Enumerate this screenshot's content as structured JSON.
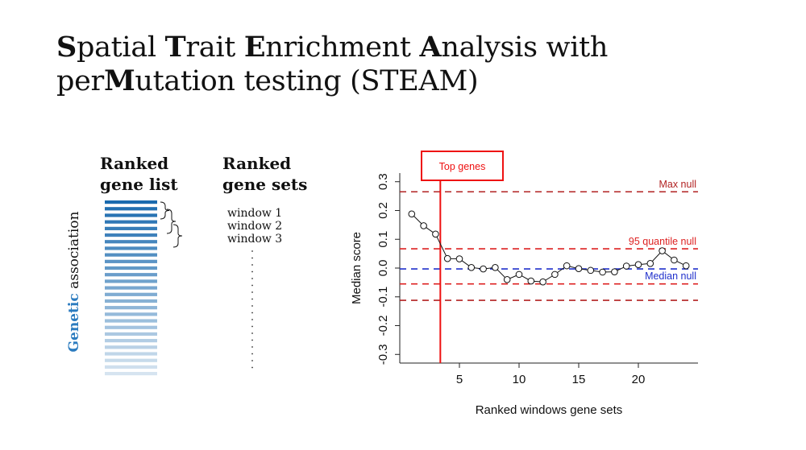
{
  "title": {
    "line1": [
      {
        "t": "S",
        "b": true
      },
      {
        "t": "patial ",
        "b": false
      },
      {
        "t": "T",
        "b": true
      },
      {
        "t": "rait ",
        "b": false
      },
      {
        "t": "E",
        "b": true
      },
      {
        "t": "nrichment ",
        "b": false
      },
      {
        "t": "A",
        "b": true
      },
      {
        "t": "nalysis with",
        "b": false
      }
    ],
    "line2": [
      {
        "t": "per",
        "b": false
      },
      {
        "t": "M",
        "b": true
      },
      {
        "t": "utation testing (STEAM)",
        "b": false
      }
    ]
  },
  "left_panel": {
    "gene_list_heading_1": "Ranked",
    "gene_list_heading_2": "gene list",
    "gene_sets_heading_1": "Ranked",
    "gene_sets_heading_2": "gene sets",
    "axis_label_strong": "Genetic",
    "axis_label_rest": " association",
    "windows": [
      "window 1",
      "window 2",
      "window 3"
    ],
    "gene_bar_count": 27,
    "gene_bar_color": "#1a6aae"
  },
  "chart_data": {
    "type": "line",
    "xlabel": "Ranked windows gene sets",
    "ylabel": "Median score",
    "xlim": [
      0,
      25
    ],
    "ylim": [
      -0.33,
      0.33
    ],
    "xticks": [
      5,
      10,
      15,
      20
    ],
    "yticks": [
      -0.3,
      -0.2,
      -0.1,
      0.0,
      0.1,
      0.2,
      0.3
    ],
    "ytick_labels": [
      "-0.3",
      "-0.2",
      "-0.1",
      "0.0",
      "0.1",
      "0.2",
      "0.3"
    ],
    "series": [
      {
        "x": [
          1,
          2,
          3,
          4,
          5,
          6,
          7,
          8,
          9,
          10,
          11,
          12,
          13,
          14,
          15,
          16,
          17,
          18,
          19,
          20,
          21,
          22,
          23,
          24
        ],
        "values": [
          0.188,
          0.147,
          0.118,
          0.033,
          0.032,
          0.002,
          -0.003,
          0.002,
          -0.04,
          -0.022,
          -0.045,
          -0.048,
          -0.022,
          0.008,
          -0.002,
          -0.008,
          -0.014,
          -0.013,
          0.007,
          0.012,
          0.016,
          0.06,
          0.028,
          0.008
        ],
        "color": "#111111"
      }
    ],
    "reference_lines": [
      {
        "label": "Max null",
        "y": 0.265,
        "color": "#b22222"
      },
      {
        "label": "95 quantile null",
        "y": 0.067,
        "color": "#dd2222"
      },
      {
        "label": "",
        "y": -0.055,
        "color": "#dd2222"
      },
      {
        "label": "",
        "y": -0.112,
        "color": "#b22222"
      },
      {
        "label": "Median null",
        "y": -0.003,
        "color": "#2030cc"
      }
    ],
    "cutoff": {
      "x": 3.4,
      "label": "Top genes",
      "color": "#ee1111"
    },
    "grid": false
  }
}
